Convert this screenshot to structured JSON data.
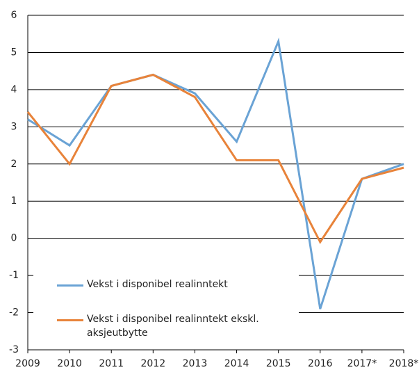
{
  "chart_data": {
    "type": "line",
    "categories": [
      "2009",
      "2010",
      "2011",
      "2012",
      "2013",
      "2014",
      "2015",
      "2016",
      "2017*",
      "2018*"
    ],
    "series": [
      {
        "name": "Vekst i disponibel realinntekt",
        "color": "#6aa3d5",
        "values": [
          3.2,
          2.5,
          4.1,
          4.4,
          3.9,
          2.6,
          5.3,
          -1.9,
          1.6,
          2.0
        ]
      },
      {
        "name": "Vekst i disponibel realinntekt ekskl. aksjeutbytte",
        "color": "#e8833a",
        "values": [
          3.4,
          2.0,
          4.1,
          4.4,
          3.8,
          2.1,
          2.1,
          -0.1,
          1.6,
          1.9
        ]
      }
    ],
    "ylim": [
      -3,
      6
    ],
    "yticks": [
      -3,
      -2,
      -1,
      0,
      1,
      2,
      3,
      4,
      5,
      6
    ],
    "grid": true
  }
}
